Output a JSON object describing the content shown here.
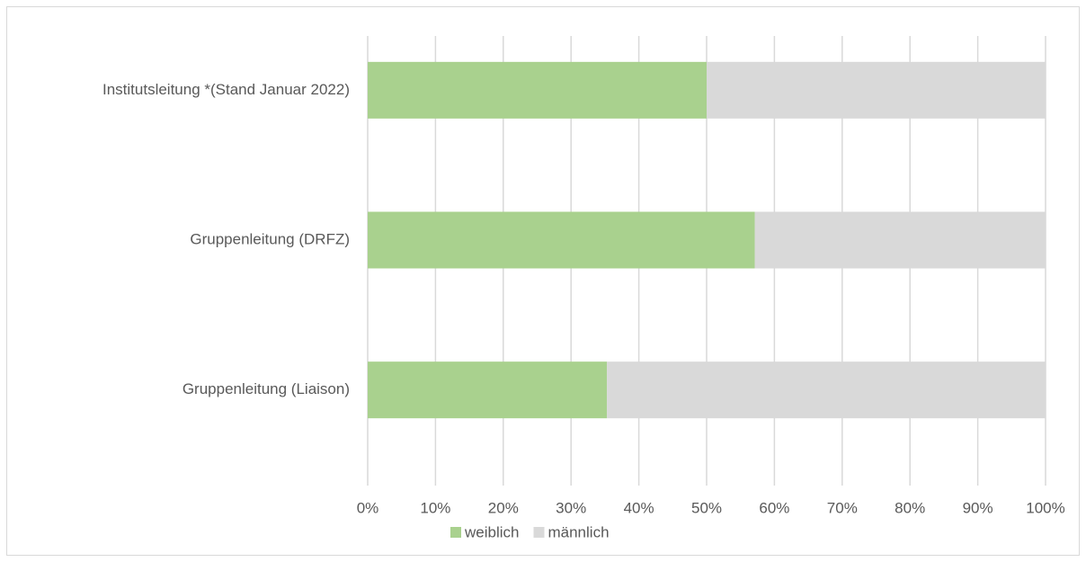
{
  "chart_data": {
    "type": "stacked_bar_horizontal",
    "categories": [
      "Institutsleitung *(Stand Januar 2022)",
      "Gruppenleitung (DRFZ)",
      "Gruppenleitung (Liaison)"
    ],
    "series": [
      {
        "name": "weiblich",
        "color": "#a9d18e",
        "values": [
          50,
          57.1,
          35.3
        ]
      },
      {
        "name": "männlich",
        "color": "#d9d9d9",
        "values": [
          50,
          42.9,
          64.7
        ]
      }
    ],
    "xlim": [
      0,
      100
    ],
    "xticks": [
      {
        "value": 0,
        "label": "0%"
      },
      {
        "value": 10,
        "label": "10%"
      },
      {
        "value": 20,
        "label": "20%"
      },
      {
        "value": 30,
        "label": "30%"
      },
      {
        "value": 40,
        "label": "40%"
      },
      {
        "value": 50,
        "label": "50%"
      },
      {
        "value": 60,
        "label": "60%"
      },
      {
        "value": 70,
        "label": "70%"
      },
      {
        "value": 80,
        "label": "80%"
      },
      {
        "value": 90,
        "label": "90%"
      },
      {
        "value": 100,
        "label": "100%"
      }
    ],
    "grid": true,
    "legend": "bottom"
  }
}
